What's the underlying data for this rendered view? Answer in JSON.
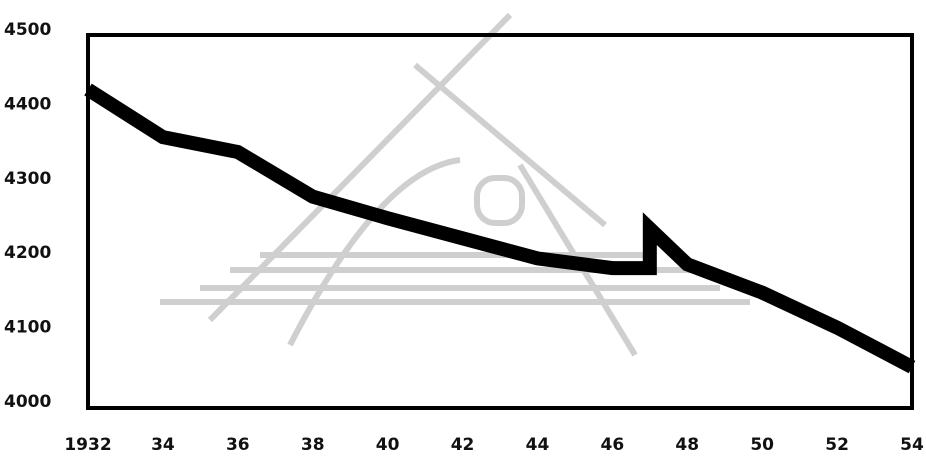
{
  "chart_data": {
    "type": "line",
    "x": [
      1932,
      1934,
      1936,
      1938,
      1940,
      1942,
      1944,
      1946,
      1947,
      1947,
      1948,
      1950,
      1952,
      1954
    ],
    "series": [
      {
        "color": "#000000",
        "values": [
          4420,
          4356,
          4336,
          4276,
          4247,
          4220,
          4193,
          4180,
          4180,
          4233,
          4185,
          4147,
          4100,
          4047
        ]
      }
    ],
    "xlim": [
      1932,
      1954
    ],
    "xticks": [
      1932,
      {
        "value": 1934,
        "label": "34"
      },
      {
        "value": 1936,
        "label": "36"
      },
      {
        "value": 1938,
        "label": "38"
      },
      {
        "value": 1940,
        "label": "40"
      },
      {
        "value": 1942,
        "label": "42"
      },
      {
        "value": 1944,
        "label": "44"
      },
      {
        "value": 1946,
        "label": "46"
      },
      {
        "value": 1948,
        "label": "48"
      },
      {
        "value": 1950,
        "label": "50"
      },
      {
        "value": 1952,
        "label": "52"
      },
      {
        "value": 1954,
        "label": "54"
      }
    ],
    "ylim": [
      4000,
      4500
    ],
    "yticks": [
      4000,
      4100,
      4200,
      4300,
      4400,
      4500
    ]
  }
}
